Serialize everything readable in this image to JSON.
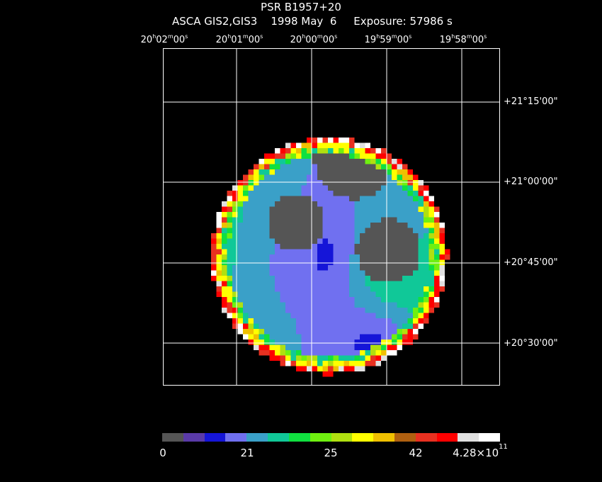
{
  "header": {
    "title": "PSR B1957+20",
    "subtitle": "ASCA GIS2,GIS3    1998 May  6     Exposure: 57986 s"
  },
  "ra_ticks": [
    {
      "h": "20",
      "m": "02",
      "s": "00"
    },
    {
      "h": "20",
      "m": "01",
      "s": "00"
    },
    {
      "h": "20",
      "m": "00",
      "s": "00"
    },
    {
      "h": "19",
      "m": "59",
      "s": "00"
    },
    {
      "h": "19",
      "m": "58",
      "s": "00"
    }
  ],
  "dec_ticks": [
    "+21°15'00\"",
    "+21°00'00\"",
    "+20°45'00\"",
    "+20°30'00\""
  ],
  "colorbar": {
    "colors": [
      "#555555",
      "#5a3aa8",
      "#1515d8",
      "#7070f0",
      "#3aa0c8",
      "#10c898",
      "#10e040",
      "#70f010",
      "#b0e010",
      "#ffff00",
      "#f0c000",
      "#b06010",
      "#e83020",
      "#ff0000",
      "#e0e0e0",
      "#ffffff"
    ],
    "labels": [
      "0",
      "21",
      "25",
      "42",
      "4.28×10"
    ],
    "label_exponent": "11"
  },
  "image": {
    "description_icon": "x-ray-sky-image"
  }
}
